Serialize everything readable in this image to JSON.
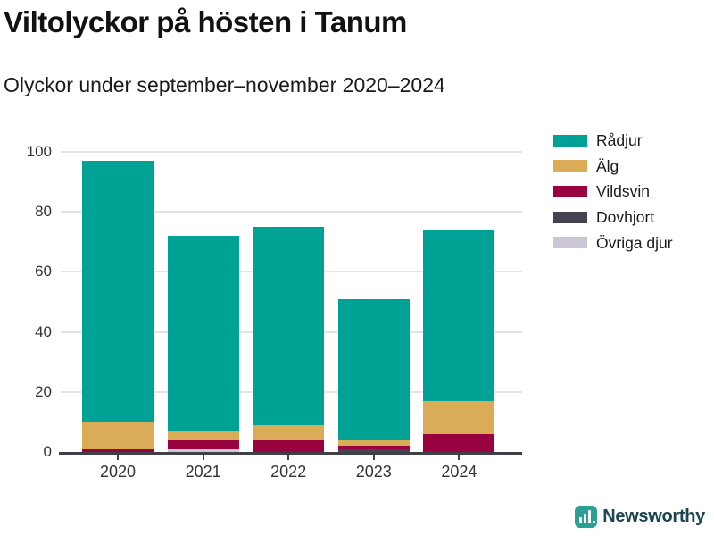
{
  "header": {
    "title": "Viltolyckor på hösten i Tanum",
    "subtitle": "Olyckor under september–november 2020–2024"
  },
  "chart_data": {
    "type": "bar",
    "stacked": true,
    "title": "Viltolyckor på hösten i Tanum",
    "subtitle": "Olyckor under september–november 2020–2024",
    "categories": [
      "2020",
      "2021",
      "2022",
      "2023",
      "2024"
    ],
    "series": [
      {
        "name": "Rådjur",
        "color": "#00a296",
        "values": [
          87,
          65,
          66,
          47,
          57
        ]
      },
      {
        "name": "Älg",
        "color": "#dbac57",
        "values": [
          9,
          3,
          5,
          2,
          11
        ]
      },
      {
        "name": "Vildsvin",
        "color": "#98023e",
        "values": [
          1,
          3,
          4,
          1,
          6
        ]
      },
      {
        "name": "Dovhjort",
        "color": "#454351",
        "values": [
          0,
          0,
          0,
          1,
          0
        ]
      },
      {
        "name": "Övriga djur",
        "color": "#cbc7d6",
        "values": [
          0,
          1,
          0,
          0,
          0
        ]
      }
    ],
    "stack_order_bottom_to_top": [
      "Övriga djur",
      "Dovhjort",
      "Vildsvin",
      "Älg",
      "Rådjur"
    ],
    "totals": [
      97,
      72,
      75,
      51,
      74
    ],
    "xlabel": "",
    "ylabel": "",
    "ylim": [
      0,
      100
    ],
    "yticks": [
      0,
      20,
      40,
      60,
      80,
      100
    ],
    "grid": "horizontal",
    "legend_position": "top-right",
    "colors": {
      "axis": "#3f3f47",
      "gridline": "#e4e4e4",
      "tick_text": "#333333",
      "title_text": "#111111"
    }
  },
  "footer": {
    "brand": "Newsworthy",
    "brand_color": "#1c4551",
    "icon_color": "#2ba094"
  }
}
